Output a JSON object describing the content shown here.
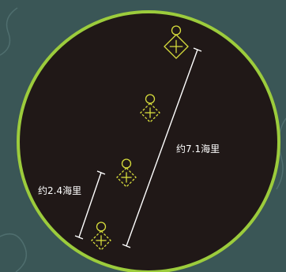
{
  "colors": {
    "background": "#3a5656",
    "disc": "#201817",
    "rim": "#9ccc3c",
    "marker": "#d8de3c",
    "bracket": "#ffffff"
  },
  "annotations": {
    "long_distance": "约7.1海里",
    "short_distance": "约2.4海里"
  },
  "markers": [
    {
      "style": "solid"
    },
    {
      "style": "dashed"
    },
    {
      "style": "dashed"
    },
    {
      "style": "dashed"
    }
  ]
}
